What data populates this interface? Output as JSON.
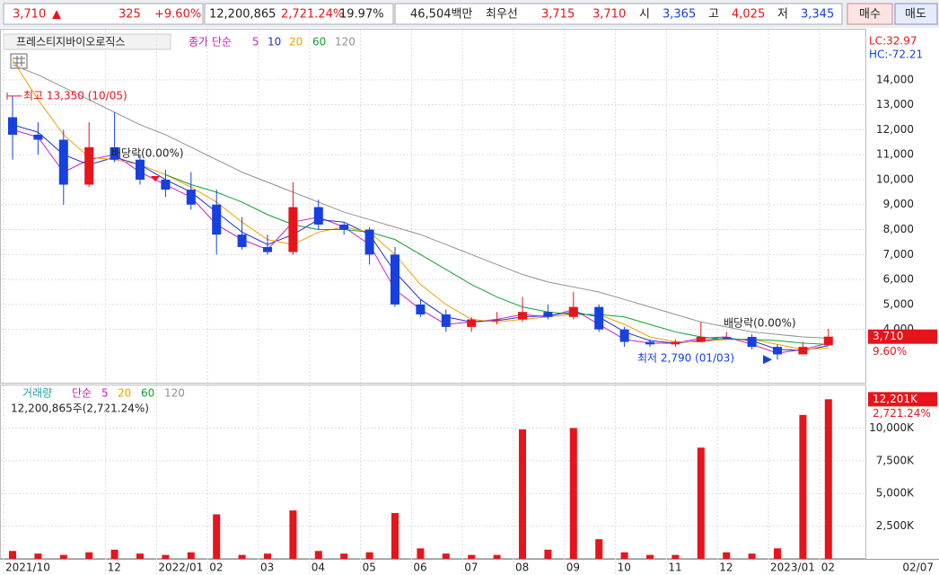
{
  "header": {
    "price": "3,710",
    "arrow": "▲",
    "change": "325",
    "change_pct": "+9.60%",
    "volume": "12,200,865",
    "volume_ratio": "2,721.24%",
    "turnover": "19.97%",
    "amount": "46,504백만",
    "best_label": "최우선",
    "ask": "3,715",
    "bid": "3,710",
    "open_label": "시",
    "open": "3,365",
    "high_label": "고",
    "high": "4,025",
    "low_label": "저",
    "low": "3,345",
    "buy": "매수",
    "sell": "매도"
  },
  "chart_data": [
    {
      "type": "candlestick",
      "title": "프레스티지바이오로직스",
      "legend_title": "종가 단순",
      "up_color": "#e8141b",
      "down_color": "#1640e0",
      "open": [
        12500,
        11800,
        11600,
        9800,
        11300,
        10800,
        10000,
        9600,
        9000,
        7800,
        7300,
        7100,
        8900,
        8200,
        8000,
        7000,
        5000,
        4600,
        4100,
        4400,
        4400,
        4700,
        4500,
        4900,
        4000,
        3500,
        3400,
        3500,
        3700,
        3700,
        3300,
        3000,
        3365
      ],
      "high": [
        13350,
        12300,
        12000,
        12300,
        12700,
        11000,
        10400,
        10300,
        9600,
        8500,
        7800,
        9900,
        9200,
        8300,
        8100,
        7300,
        5200,
        4800,
        4500,
        4700,
        5300,
        5000,
        5500,
        5000,
        4100,
        3600,
        3600,
        4300,
        3900,
        3800,
        3400,
        3500,
        4025
      ],
      "low": [
        10800,
        11000,
        9000,
        9700,
        10700,
        9800,
        9300,
        8800,
        7000,
        7200,
        7000,
        7000,
        8000,
        7800,
        6600,
        4900,
        4500,
        3900,
        3900,
        4200,
        4300,
        4400,
        4400,
        3900,
        3300,
        3300,
        3300,
        3500,
        3600,
        3200,
        2790,
        3000,
        3345
      ],
      "close": [
        11800,
        11600,
        9800,
        11300,
        10800,
        10000,
        9600,
        9000,
        7800,
        7300,
        7100,
        8900,
        8200,
        8000,
        7000,
        5000,
        4600,
        4100,
        4400,
        4400,
        4700,
        4500,
        4900,
        4000,
        3500,
        3400,
        3500,
        3700,
        3700,
        3300,
        3000,
        3300,
        3710
      ],
      "moving_averages": [
        {
          "name": "5",
          "color": "#d020c8",
          "values": [
            12000,
            11700,
            10300,
            10800,
            11000,
            10300,
            9800,
            9300,
            8200,
            7600,
            7200,
            8300,
            8500,
            8100,
            7400,
            5600,
            4800,
            4200,
            4300,
            4400,
            4600,
            4500,
            4800,
            4200,
            3600,
            3450,
            3450,
            3650,
            3700,
            3400,
            3050,
            3200,
            3450
          ]
        },
        {
          "name": "10",
          "color": "#2030d0",
          "values": [
            12200,
            11900,
            11000,
            10600,
            10900,
            10600,
            10000,
            9500,
            8700,
            7900,
            7400,
            7800,
            8400,
            8300,
            7800,
            6300,
            5200,
            4500,
            4300,
            4350,
            4500,
            4550,
            4700,
            4500,
            3900,
            3550,
            3450,
            3550,
            3650,
            3550,
            3200,
            3150,
            3350
          ]
        },
        {
          "name": "20",
          "color": "#f0a000",
          "values": [
            14800,
            13200,
            11800,
            10900,
            10800,
            10600,
            10200,
            9700,
            9100,
            8300,
            7600,
            7400,
            7900,
            8100,
            7900,
            7000,
            5800,
            5000,
            4400,
            4300,
            4400,
            4500,
            4600,
            4600,
            4200,
            3700,
            3500,
            3500,
            3600,
            3600,
            3400,
            3200,
            3250
          ]
        },
        {
          "name": "60",
          "color": "#10a030",
          "values": [
            null,
            null,
            null,
            null,
            null,
            null,
            10200,
            9800,
            9500,
            9100,
            8600,
            8200,
            8000,
            8000,
            7900,
            7600,
            7000,
            6400,
            5800,
            5300,
            4900,
            4700,
            4600,
            4600,
            4500,
            4200,
            3900,
            3700,
            3600,
            3600,
            3550,
            3450,
            3400
          ]
        },
        {
          "name": "120",
          "color": "#909090",
          "values": [
            14600,
            14200,
            13700,
            13200,
            12700,
            12200,
            11800,
            11300,
            10800,
            10300,
            9900,
            9500,
            9100,
            8700,
            8400,
            8100,
            7800,
            7400,
            7000,
            6600,
            6200,
            5900,
            5700,
            5500,
            5200,
            4900,
            4600,
            4300,
            4100,
            3900,
            3800,
            3700,
            3650
          ]
        }
      ],
      "ylim": [
        1900,
        15830
      ],
      "yticks": [
        {
          "value": 4000,
          "label": "4,000"
        },
        {
          "value": 5000,
          "label": "5,000"
        },
        {
          "value": 6000,
          "label": "6,000"
        },
        {
          "value": 7000,
          "label": "7,000"
        },
        {
          "value": 8000,
          "label": "8,000"
        },
        {
          "value": 9000,
          "label": "9,000"
        },
        {
          "value": 10000,
          "label": "10,000"
        },
        {
          "value": 11000,
          "label": "11,000"
        },
        {
          "value": 12000,
          "label": "12,000"
        },
        {
          "value": 13000,
          "label": "13,000"
        },
        {
          "value": 14000,
          "label": "14,000"
        }
      ],
      "high_annotation": {
        "value": 13350,
        "label": "최고 13,350 (10/05)"
      },
      "low_annotation": {
        "value": 2790,
        "label": "최저 2,790 (01/03)"
      },
      "dividend_labels": [
        "배당락(0.00%)",
        "배당락(0.00%)"
      ],
      "lc_label": "LC:32.97",
      "hc_label": "HC:-72.21",
      "last_label": {
        "value": 3710,
        "label": "3,710"
      },
      "change_label": "9.60%",
      "grid": true
    },
    {
      "type": "bar",
      "title": "거래량",
      "legend_title": "단순",
      "color": "#e8141b",
      "info": "12,200,865주(2,721.24%)",
      "ma_legend": [
        {
          "name": "5",
          "color": "#d020c8"
        },
        {
          "name": "20",
          "color": "#f0a000"
        },
        {
          "name": "60",
          "color": "#10a030"
        },
        {
          "name": "120",
          "color": "#909090"
        }
      ],
      "categories": [
        "2021/10",
        null,
        null,
        null,
        "12",
        null,
        "2022/01",
        null,
        "02",
        null,
        "03",
        null,
        "04",
        null,
        "05",
        null,
        "06",
        null,
        "07",
        null,
        "08",
        null,
        "09",
        null,
        "10",
        null,
        "11",
        null,
        "12",
        null,
        "2023/01",
        null,
        "02"
      ],
      "values": [
        600,
        400,
        300,
        500,
        700,
        400,
        300,
        500,
        3400,
        300,
        400,
        3700,
        600,
        400,
        500,
        3500,
        800,
        400,
        300,
        300,
        9900,
        700,
        10000,
        1500,
        500,
        300,
        300,
        8500,
        500,
        400,
        800,
        11000,
        12200.865
      ],
      "ylim": [
        0,
        13050
      ],
      "yticks": [
        {
          "value": 2500,
          "label": "2,500K"
        },
        {
          "value": 5000,
          "label": "5,000K"
        },
        {
          "value": 7500,
          "label": "7,500K"
        },
        {
          "value": 10000,
          "label": "10,000K"
        }
      ],
      "last_label": {
        "value": 12200.865,
        "label": "12,201K"
      },
      "ratio_label": "2,721.24%",
      "cursor_label": "02/07",
      "grid": true
    }
  ]
}
